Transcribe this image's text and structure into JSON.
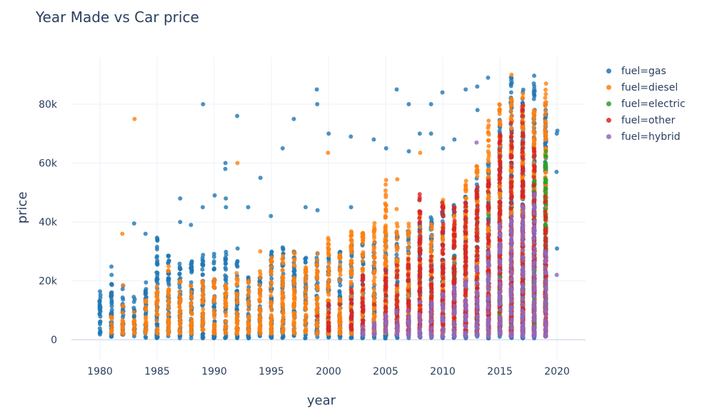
{
  "chart_data": {
    "type": "scatter",
    "title": "Year Made vs Car price",
    "xlabel": "year",
    "ylabel": "price",
    "xlim": [
      1977.5,
      2022.5
    ],
    "ylim": [
      -7000,
      96000
    ],
    "x_ticks": [
      1980,
      1985,
      1990,
      1995,
      2000,
      2005,
      2010,
      2015,
      2020
    ],
    "x_tick_labels": [
      "1980",
      "1985",
      "1990",
      "1995",
      "2000",
      "2005",
      "2010",
      "2015",
      "2020"
    ],
    "y_ticks": [
      0,
      20000,
      40000,
      60000,
      80000
    ],
    "y_tick_labels": [
      "0",
      "20k",
      "40k",
      "60k",
      "80k"
    ],
    "grid": true,
    "legend_position": "top-right",
    "series": [
      {
        "name": "fuel=gas",
        "color": "#1f77b4",
        "columns": [
          [
            1980,
            1000,
            17000
          ],
          [
            1981,
            1000,
            25000
          ],
          [
            1982,
            1000,
            19000
          ],
          [
            1983,
            1000,
            15000
          ],
          [
            1984,
            500,
            22000
          ],
          [
            1985,
            500,
            35000
          ],
          [
            1986,
            500,
            30000
          ],
          [
            1987,
            500,
            28000
          ],
          [
            1988,
            500,
            27000
          ],
          [
            1989,
            500,
            30000
          ],
          [
            1990,
            500,
            30000
          ],
          [
            1991,
            500,
            30000
          ],
          [
            1992,
            500,
            28000
          ],
          [
            1993,
            500,
            23000
          ],
          [
            1994,
            500,
            22000
          ],
          [
            1995,
            500,
            32000
          ],
          [
            1996,
            500,
            32000
          ],
          [
            1997,
            500,
            30000
          ],
          [
            1998,
            500,
            28000
          ],
          [
            1999,
            500,
            30000
          ],
          [
            2000,
            500,
            30000
          ],
          [
            2001,
            500,
            31000
          ],
          [
            2002,
            500,
            33000
          ],
          [
            2003,
            500,
            33000
          ],
          [
            2004,
            500,
            34000
          ],
          [
            2005,
            500,
            36000
          ],
          [
            2006,
            500,
            37000
          ],
          [
            2007,
            500,
            38000
          ],
          [
            2008,
            500,
            40000
          ],
          [
            2009,
            500,
            42000
          ],
          [
            2010,
            500,
            45000
          ],
          [
            2011,
            500,
            47000
          ],
          [
            2012,
            500,
            50000
          ],
          [
            2013,
            500,
            55000
          ],
          [
            2014,
            500,
            60000
          ],
          [
            2015,
            500,
            75000
          ],
          [
            2016,
            500,
            90000
          ],
          [
            2017,
            500,
            85000
          ],
          [
            2018,
            500,
            90000
          ],
          [
            2019,
            9000,
            80000
          ]
        ],
        "points": [
          [
            1983,
            39500
          ],
          [
            1984,
            36000
          ],
          [
            1987,
            48000
          ],
          [
            1987,
            40000
          ],
          [
            1988,
            39000
          ],
          [
            1989,
            80000
          ],
          [
            1989,
            45000
          ],
          [
            1990,
            49000
          ],
          [
            1991,
            60000
          ],
          [
            1991,
            58000
          ],
          [
            1991,
            48000
          ],
          [
            1991,
            45000
          ],
          [
            1992,
            76000
          ],
          [
            1992,
            31000
          ],
          [
            1993,
            45000
          ],
          [
            1994,
            55000
          ],
          [
            1995,
            42000
          ],
          [
            1996,
            65000
          ],
          [
            1997,
            75000
          ],
          [
            1998,
            45000
          ],
          [
            1999,
            85000
          ],
          [
            1999,
            80000
          ],
          [
            1999,
            44000
          ],
          [
            2000,
            70000
          ],
          [
            2002,
            69000
          ],
          [
            2002,
            45000
          ],
          [
            2004,
            68000
          ],
          [
            2005,
            65000
          ],
          [
            2006,
            85000
          ],
          [
            2007,
            80000
          ],
          [
            2007,
            64000
          ],
          [
            2008,
            70000
          ],
          [
            2009,
            80000
          ],
          [
            2009,
            70000
          ],
          [
            2010,
            84000
          ],
          [
            2010,
            65000
          ],
          [
            2011,
            68000
          ],
          [
            2012,
            85000
          ],
          [
            2013,
            86000
          ],
          [
            2013,
            78000
          ],
          [
            2014,
            89000
          ],
          [
            2020,
            71000
          ],
          [
            2020,
            70000
          ],
          [
            2020,
            57000
          ],
          [
            2020,
            31000
          ]
        ]
      },
      {
        "name": "fuel=diesel",
        "color": "#ff7f0e",
        "columns": [
          [
            1981,
            2000,
            8000
          ],
          [
            1982,
            2000,
            12000
          ],
          [
            1983,
            2000,
            10000
          ],
          [
            1984,
            2000,
            14000
          ],
          [
            1985,
            2000,
            18000
          ],
          [
            1986,
            2000,
            25000
          ],
          [
            1987,
            2000,
            20000
          ],
          [
            1988,
            2000,
            20000
          ],
          [
            1989,
            2000,
            20000
          ],
          [
            1990,
            2000,
            22000
          ],
          [
            1991,
            2000,
            20000
          ],
          [
            1992,
            2000,
            23000
          ],
          [
            1993,
            2000,
            20000
          ],
          [
            1994,
            2000,
            24000
          ],
          [
            1995,
            2000,
            28000
          ],
          [
            1996,
            2000,
            29000
          ],
          [
            1997,
            2000,
            30000
          ],
          [
            1998,
            2000,
            25000
          ],
          [
            1999,
            2000,
            30000
          ],
          [
            2000,
            2000,
            35000
          ],
          [
            2001,
            2000,
            30000
          ],
          [
            2002,
            2000,
            37000
          ],
          [
            2003,
            2000,
            37000
          ],
          [
            2004,
            2000,
            40000
          ],
          [
            2005,
            2000,
            55000
          ],
          [
            2006,
            2000,
            45000
          ],
          [
            2007,
            2000,
            40000
          ],
          [
            2008,
            2000,
            44000
          ],
          [
            2009,
            2000,
            40000
          ],
          [
            2010,
            2000,
            48000
          ],
          [
            2011,
            2000,
            45000
          ],
          [
            2012,
            2000,
            55000
          ],
          [
            2013,
            2000,
            60000
          ],
          [
            2014,
            2000,
            75000
          ],
          [
            2015,
            2000,
            80000
          ],
          [
            2016,
            2000,
            82000
          ],
          [
            2017,
            2000,
            85000
          ],
          [
            2018,
            2000,
            78000
          ],
          [
            2019,
            2000,
            86000
          ]
        ],
        "points": [
          [
            1982,
            36000
          ],
          [
            1982,
            18500
          ],
          [
            1983,
            75000
          ],
          [
            1992,
            60000
          ],
          [
            1994,
            30000
          ],
          [
            2000,
            63500
          ],
          [
            2005,
            48500
          ],
          [
            2006,
            54500
          ],
          [
            2008,
            63500
          ],
          [
            2016,
            90000
          ],
          [
            2019,
            87000
          ]
        ]
      },
      {
        "name": "fuel=electric",
        "color": "#2ca02c",
        "columns": [
          [
            2011,
            20000,
            28000
          ],
          [
            2013,
            2000,
            8000
          ],
          [
            2015,
            3000,
            28000
          ],
          [
            2017,
            2000,
            30000
          ],
          [
            2018,
            5000,
            55000
          ],
          [
            2019,
            10000,
            64000
          ]
        ],
        "points": [
          [
            2012,
            2500
          ],
          [
            2014,
            42000
          ],
          [
            2016,
            5000
          ],
          [
            2017,
            58000
          ]
        ]
      },
      {
        "name": "fuel=other",
        "color": "#d62728",
        "columns": [
          [
            2000,
            3000,
            15000
          ],
          [
            2002,
            3000,
            17000
          ],
          [
            2003,
            3000,
            22000
          ],
          [
            2005,
            3000,
            24000
          ],
          [
            2006,
            3000,
            26000
          ],
          [
            2007,
            3000,
            28000
          ],
          [
            2008,
            3000,
            50000
          ],
          [
            2009,
            3000,
            30000
          ],
          [
            2010,
            3000,
            47000
          ],
          [
            2011,
            3000,
            45000
          ],
          [
            2012,
            3000,
            50000
          ],
          [
            2013,
            3000,
            52000
          ],
          [
            2014,
            3000,
            55000
          ],
          [
            2015,
            3000,
            72000
          ],
          [
            2016,
            3000,
            74000
          ],
          [
            2017,
            3000,
            80000
          ],
          [
            2018,
            3000,
            66000
          ],
          [
            2019,
            3000,
            50000
          ]
        ],
        "points": [
          [
            1999,
            8000
          ],
          [
            2001,
            12000
          ],
          [
            2004,
            12000
          ]
        ]
      },
      {
        "name": "fuel=hybrid",
        "color": "#9467bd",
        "columns": [
          [
            2003,
            1000,
            5000
          ],
          [
            2004,
            1000,
            7000
          ],
          [
            2005,
            1000,
            9000
          ],
          [
            2006,
            1000,
            10000
          ],
          [
            2007,
            1000,
            11000
          ],
          [
            2008,
            1000,
            13000
          ],
          [
            2009,
            1000,
            14000
          ],
          [
            2010,
            1000,
            16000
          ],
          [
            2011,
            1000,
            18000
          ],
          [
            2012,
            1000,
            20000
          ],
          [
            2013,
            1000,
            25000
          ],
          [
            2014,
            1000,
            30000
          ],
          [
            2015,
            1000,
            40000
          ],
          [
            2016,
            1000,
            45000
          ],
          [
            2017,
            1000,
            47000
          ],
          [
            2018,
            1000,
            50000
          ],
          [
            2019,
            1000,
            30000
          ]
        ],
        "points": [
          [
            2013,
            67000
          ],
          [
            2020,
            22000
          ]
        ]
      }
    ]
  }
}
